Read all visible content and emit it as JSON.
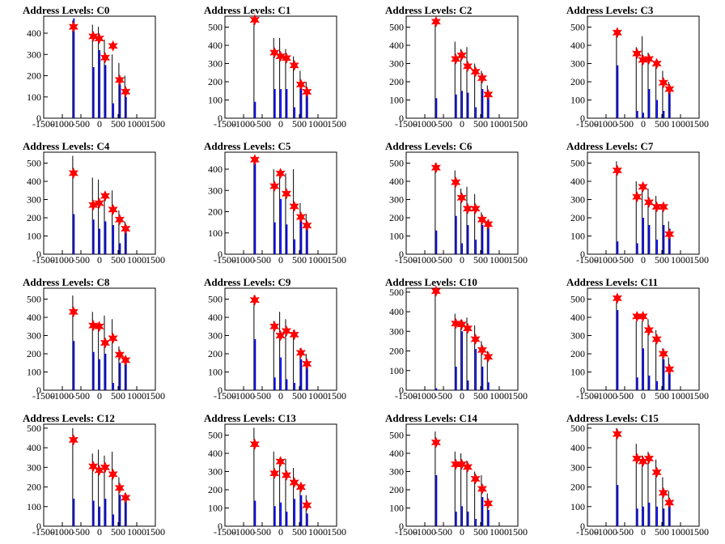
{
  "colors": {
    "blue": "#0000ff",
    "black": "#000000",
    "star": "#ff0000"
  },
  "chart_data": {
    "type": "bar",
    "x_ticks": [
      -1500,
      -1000,
      -500,
      0,
      500,
      1000,
      1500
    ],
    "x_tick_labels": [
      "-1500",
      "-1000",
      "-500",
      "0",
      "500",
      "1000",
      "1500"
    ],
    "xlim": [
      -1500,
      1500
    ],
    "levels": [
      -720,
      -190,
      -30,
      130,
      340,
      520,
      680
    ],
    "panels": [
      {
        "title": "Address Levels: C0",
        "ylim": [
          0,
          480
        ],
        "y_ticks": [
          0,
          100,
          200,
          300,
          400
        ],
        "black": [
          460,
          440,
          430,
          370,
          300,
          260,
          200
        ],
        "blue": [
          470,
          240,
          320,
          250,
          70,
          160,
          100
        ],
        "stars": [
          430,
          385,
          375,
          285,
          340,
          180,
          125
        ]
      },
      {
        "title": "Address Levels: C1",
        "ylim": [
          0,
          560
        ],
        "y_ticks": [
          0,
          100,
          200,
          300,
          400,
          500
        ],
        "black": [
          540,
          440,
          440,
          380,
          340,
          260,
          200
        ],
        "blue": [
          90,
          160,
          160,
          160,
          60,
          170,
          160
        ],
        "stars": [
          540,
          360,
          340,
          330,
          290,
          185,
          145
        ]
      },
      {
        "title": "Address Levels: C2",
        "ylim": [
          0,
          560
        ],
        "y_ticks": [
          0,
          100,
          200,
          300,
          400,
          500
        ],
        "black": [
          540,
          420,
          380,
          390,
          300,
          260,
          180
        ],
        "blue": [
          110,
          130,
          150,
          140,
          60,
          160,
          120
        ],
        "stars": [
          530,
          325,
          345,
          285,
          255,
          220,
          130
        ]
      },
      {
        "title": "Address Levels: C3",
        "ylim": [
          0,
          560
        ],
        "y_ticks": [
          0,
          100,
          200,
          300,
          400,
          500
        ],
        "black": [
          480,
          390,
          450,
          360,
          320,
          260,
          200
        ],
        "blue": [
          290,
          40,
          30,
          160,
          100,
          40,
          160
        ],
        "stars": [
          470,
          355,
          320,
          325,
          300,
          195,
          160
        ]
      },
      {
        "title": "Address Levels: C4",
        "ylim": [
          0,
          560
        ],
        "y_ticks": [
          0,
          100,
          200,
          300,
          400,
          500
        ],
        "black": [
          540,
          420,
          410,
          340,
          350,
          240,
          180
        ],
        "blue": [
          220,
          190,
          140,
          180,
          160,
          60,
          120
        ],
        "stars": [
          445,
          270,
          280,
          320,
          245,
          190,
          140
        ]
      },
      {
        "title": "Address Levels: C5",
        "ylim": [
          0,
          480
        ],
        "y_ticks": [
          0,
          100,
          200,
          300,
          400
        ],
        "black": [
          460,
          400,
          380,
          380,
          400,
          240,
          190
        ],
        "blue": [
          440,
          150,
          260,
          140,
          70,
          160,
          150
        ],
        "stars": [
          445,
          320,
          380,
          285,
          225,
          175,
          135
        ]
      },
      {
        "title": "Address Levels: C6",
        "ylim": [
          0,
          560
        ],
        "y_ticks": [
          0,
          100,
          200,
          300,
          400,
          500
        ],
        "black": [
          500,
          460,
          360,
          370,
          330,
          230,
          180
        ],
        "blue": [
          130,
          210,
          60,
          160,
          80,
          160,
          150
        ],
        "stars": [
          475,
          395,
          310,
          250,
          250,
          190,
          165
        ]
      },
      {
        "title": "Address Levels: C7",
        "ylim": [
          0,
          560
        ],
        "y_ticks": [
          0,
          100,
          200,
          300,
          400,
          500
        ],
        "black": [
          510,
          400,
          370,
          360,
          320,
          270,
          180
        ],
        "blue": [
          70,
          60,
          200,
          160,
          80,
          160,
          140
        ],
        "stars": [
          460,
          315,
          370,
          285,
          260,
          260,
          110
        ]
      },
      {
        "title": "Address Levels: C8",
        "ylim": [
          0,
          560
        ],
        "y_ticks": [
          0,
          100,
          200,
          300,
          400,
          500
        ],
        "black": [
          520,
          430,
          340,
          410,
          390,
          240,
          180
        ],
        "blue": [
          270,
          210,
          170,
          200,
          40,
          150,
          150
        ],
        "stars": [
          430,
          355,
          350,
          260,
          285,
          195,
          165
        ]
      },
      {
        "title": "Address Levels: C9",
        "ylim": [
          0,
          560
        ],
        "y_ticks": [
          0,
          100,
          200,
          300,
          400,
          500
        ],
        "black": [
          520,
          380,
          430,
          390,
          330,
          230,
          200
        ],
        "blue": [
          280,
          70,
          180,
          60,
          40,
          170,
          130
        ],
        "stars": [
          495,
          350,
          300,
          325,
          305,
          205,
          145
        ]
      },
      {
        "title": "Address Levels: C10",
        "ylim": [
          0,
          520
        ],
        "y_ticks": [
          0,
          100,
          200,
          300,
          400,
          500
        ],
        "black": [
          510,
          390,
          360,
          370,
          330,
          250,
          200
        ],
        "blue": [
          10,
          120,
          300,
          50,
          210,
          120,
          40
        ],
        "stars": [
          505,
          340,
          335,
          315,
          260,
          205,
          170
        ]
      },
      {
        "title": "Address Levels: C11",
        "ylim": [
          0,
          560
        ],
        "y_ticks": [
          0,
          100,
          200,
          300,
          400,
          500
        ],
        "black": [
          520,
          380,
          380,
          390,
          330,
          230,
          180
        ],
        "blue": [
          440,
          70,
          230,
          80,
          50,
          170,
          120
        ],
        "stars": [
          505,
          405,
          405,
          330,
          280,
          200,
          115
        ]
      },
      {
        "title": "Address Levels: C12",
        "ylim": [
          0,
          520
        ],
        "y_ticks": [
          0,
          100,
          200,
          300,
          400,
          500
        ],
        "black": [
          500,
          370,
          390,
          360,
          380,
          250,
          170
        ],
        "blue": [
          140,
          130,
          100,
          140,
          60,
          160,
          130
        ],
        "stars": [
          440,
          305,
          285,
          300,
          265,
          195,
          145
        ]
      },
      {
        "title": "Address Levels: C13",
        "ylim": [
          0,
          560
        ],
        "y_ticks": [
          0,
          100,
          200,
          300,
          400,
          500
        ],
        "black": [
          540,
          410,
          340,
          370,
          320,
          230,
          170
        ],
        "blue": [
          140,
          110,
          130,
          80,
          150,
          170,
          70
        ],
        "stars": [
          450,
          290,
          355,
          280,
          240,
          215,
          115
        ]
      },
      {
        "title": "Address Levels: C14",
        "ylim": [
          0,
          560
        ],
        "y_ticks": [
          0,
          100,
          200,
          300,
          400,
          500
        ],
        "black": [
          520,
          410,
          400,
          360,
          300,
          280,
          180
        ],
        "blue": [
          280,
          80,
          110,
          80,
          40,
          160,
          90
        ],
        "stars": [
          460,
          340,
          340,
          325,
          260,
          205,
          125
        ]
      },
      {
        "title": "Address Levels: C15",
        "ylim": [
          0,
          520
        ],
        "y_ticks": [
          0,
          100,
          200,
          300,
          400,
          500
        ],
        "black": [
          500,
          420,
          360,
          380,
          340,
          250,
          180
        ],
        "blue": [
          210,
          90,
          100,
          120,
          100,
          90,
          140
        ],
        "stars": [
          470,
          345,
          330,
          345,
          275,
          170,
          120
        ]
      }
    ]
  }
}
